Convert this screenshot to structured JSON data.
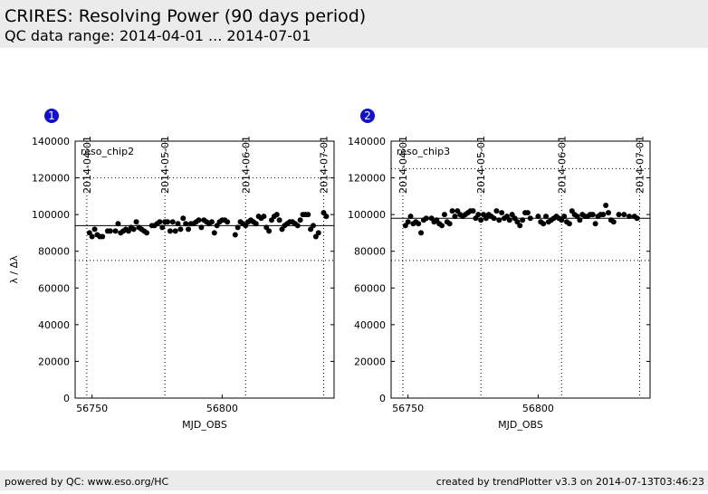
{
  "header": {
    "title": "CRIRES: Resolving Power (90 days period)",
    "subtitle": "QC data range: 2014-04-01 ... 2014-07-01"
  },
  "footer": {
    "left": "powered by QC: www.eso.org/HC",
    "right": "created by trendPlotter v3.3 on 2014-07-13T03:46:23"
  },
  "chart_data": [
    {
      "type": "scatter",
      "number": 1,
      "label": "reso_chip2",
      "x_label": "MJD_OBS",
      "y_label": "λ / Δλ",
      "color": "#000000",
      "xlim": [
        56743.5,
        56843
      ],
      "ylim": [
        0,
        140000
      ],
      "xticks": [
        56750,
        56800
      ],
      "yticks": [
        0,
        20000,
        40000,
        60000,
        80000,
        100000,
        120000,
        140000
      ],
      "top_ticks": [
        {
          "value": 56748,
          "label": "2014-04-01"
        },
        {
          "value": 56778,
          "label": "2014-05-01"
        },
        {
          "value": 56809,
          "label": "2014-06-01"
        },
        {
          "value": 56839,
          "label": "2014-07-01"
        }
      ],
      "ref_lines": {
        "center": 94000,
        "upper": 120000,
        "lower": 75000
      },
      "x": [
        56749,
        56750,
        56751,
        56752,
        56753,
        56754,
        56756,
        56757,
        56759,
        56760,
        56761,
        56762,
        56763,
        56764,
        56765,
        56766,
        56767,
        56768,
        56769,
        56770,
        56771,
        56773,
        56774,
        56775,
        56776,
        56777,
        56778,
        56779,
        56780,
        56781,
        56782,
        56783,
        56784,
        56785,
        56786,
        56787,
        56788,
        56789,
        56790,
        56791,
        56792,
        56793,
        56794,
        56795,
        56796,
        56797,
        56798,
        56799,
        56800,
        56801,
        56802,
        56805,
        56806,
        56807,
        56808,
        56809,
        56810,
        56811,
        56812,
        56813,
        56814,
        56815,
        56816,
        56817,
        56818,
        56819,
        56820,
        56821,
        56822,
        56823,
        56824,
        56825,
        56826,
        56827,
        56828,
        56829,
        56830,
        56831,
        56832,
        56833,
        56834,
        56835,
        56836,
        56837,
        56839,
        56840
      ],
      "values": [
        90000,
        88000,
        92000,
        89000,
        88000,
        88000,
        91000,
        91000,
        91000,
        95000,
        90000,
        91000,
        92000,
        91000,
        93000,
        92000,
        96000,
        93000,
        92000,
        91000,
        90000,
        94000,
        94000,
        95000,
        96000,
        93000,
        96000,
        96000,
        91000,
        96000,
        91000,
        95000,
        92000,
        98000,
        95000,
        92000,
        95000,
        95000,
        96000,
        97000,
        93000,
        97000,
        96000,
        95000,
        96000,
        90000,
        94000,
        96000,
        97000,
        97000,
        96000,
        89000,
        93000,
        96000,
        95000,
        94000,
        96000,
        97000,
        96000,
        95000,
        99000,
        98000,
        99000,
        93000,
        91000,
        97000,
        99000,
        100000,
        97000,
        92000,
        94000,
        95000,
        96000,
        96000,
        95000,
        94000,
        97000,
        100000,
        100000,
        100000,
        92000,
        94000,
        88000,
        90000,
        101000,
        99000
      ]
    },
    {
      "type": "scatter",
      "number": 2,
      "label": "reso_chip3",
      "x_label": "MJD_OBS",
      "color": "#000000",
      "xlim": [
        56743.5,
        56843
      ],
      "ylim": [
        0,
        140000
      ],
      "xticks": [
        56750,
        56800
      ],
      "yticks": [
        0,
        20000,
        40000,
        60000,
        80000,
        100000,
        120000,
        140000
      ],
      "top_ticks": [
        {
          "value": 56748,
          "label": "2014-04-01"
        },
        {
          "value": 56778,
          "label": "2014-05-01"
        },
        {
          "value": 56809,
          "label": "2014-06-01"
        },
        {
          "value": 56839,
          "label": "2014-07-01"
        }
      ],
      "ref_lines": {
        "center": 98000,
        "upper": 125000,
        "lower": 75000
      },
      "x": [
        56749,
        56750,
        56751,
        56752,
        56753,
        56754,
        56755,
        56756,
        56757,
        56759,
        56760,
        56761,
        56762,
        56763,
        56764,
        56765,
        56766,
        56767,
        56768,
        56769,
        56770,
        56771,
        56772,
        56773,
        56774,
        56775,
        56776,
        56777,
        56778,
        56779,
        56780,
        56781,
        56782,
        56783,
        56784,
        56785,
        56786,
        56787,
        56788,
        56789,
        56790,
        56791,
        56792,
        56793,
        56794,
        56795,
        56796,
        56797,
        56800,
        56801,
        56802,
        56803,
        56804,
        56805,
        56806,
        56807,
        56808,
        56809,
        56810,
        56811,
        56812,
        56813,
        56814,
        56815,
        56816,
        56817,
        56818,
        56819,
        56820,
        56821,
        56822,
        56823,
        56824,
        56825,
        56826,
        56827,
        56828,
        56829,
        56831,
        56833,
        56835,
        56837,
        56838
      ],
      "values": [
        94000,
        96000,
        99000,
        95000,
        96000,
        95000,
        90000,
        97000,
        98000,
        98000,
        96000,
        97000,
        95000,
        94000,
        100000,
        96000,
        95000,
        102000,
        99000,
        102000,
        100000,
        99000,
        100000,
        101000,
        102000,
        102000,
        98000,
        100000,
        97000,
        100000,
        98000,
        100000,
        99000,
        98000,
        102000,
        97000,
        101000,
        98000,
        99000,
        97000,
        100000,
        98000,
        96000,
        94000,
        97000,
        101000,
        101000,
        98000,
        99000,
        96000,
        95000,
        99000,
        96000,
        97000,
        98000,
        99000,
        98000,
        97000,
        99000,
        96000,
        95000,
        102000,
        100000,
        99000,
        97000,
        100000,
        99000,
        99000,
        100000,
        100000,
        95000,
        99000,
        100000,
        100000,
        105000,
        101000,
        97000,
        96000,
        100000,
        100000,
        99000,
        99000,
        98000
      ]
    }
  ]
}
